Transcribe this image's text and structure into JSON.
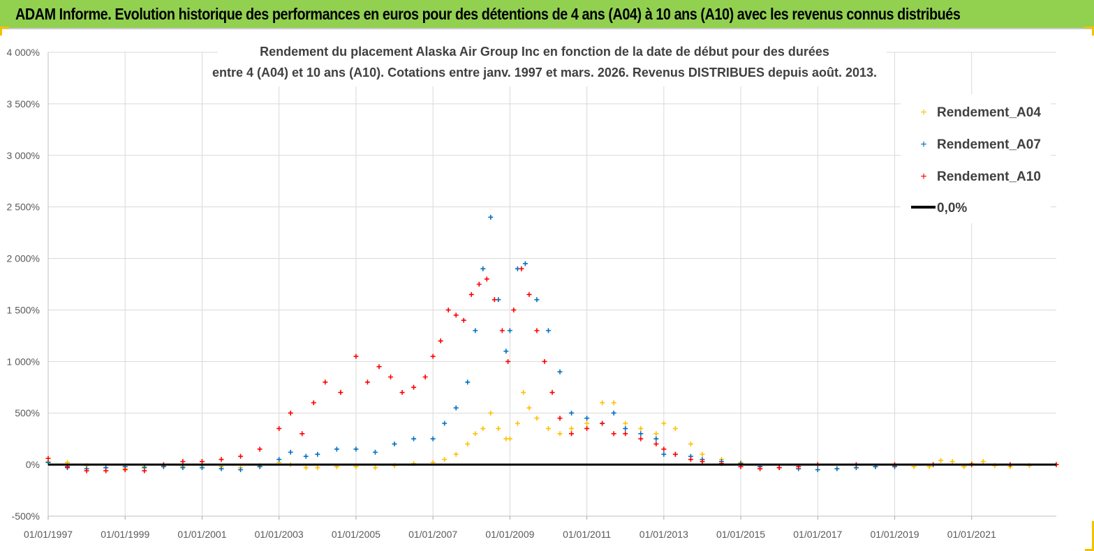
{
  "header": {
    "title": "ADAM Informe. Evolution historique des performances en euros pour des détentions de 4 ans (A04) à 10 ans (A10) avec les revenus connus distribués"
  },
  "colors": {
    "banner": "#92d050",
    "A04": "#ffc000",
    "A07": "#0070c0",
    "A10": "#ff0000",
    "zero": "#000000",
    "grid": "#d9d9d9"
  },
  "chart_data": {
    "type": "scatter",
    "title_lines": [
      "Rendement du placement Alaska Air Group Inc en fonction de la date de début pour des durées",
      "entre 4 (A04) et 10 ans (A10). Cotations entre janv. 1997 et mars. 2026. Revenus DISTRIBUES depuis août. 2013."
    ],
    "x_ticks": [
      "01/01/1997",
      "01/01/1999",
      "01/01/2001",
      "01/01/2003",
      "01/01/2005",
      "01/01/2007",
      "01/01/2009",
      "01/01/2011",
      "01/01/2013",
      "01/01/2015",
      "01/01/2017",
      "01/01/2019",
      "01/01/2021"
    ],
    "x_range": [
      1997.0,
      2023.2
    ],
    "y_ticks": [
      "-500%",
      "0%",
      "500%",
      "1 000%",
      "1 500%",
      "2 000%",
      "2 500%",
      "3 000%",
      "3 500%",
      "4 000%"
    ],
    "y_range": [
      -500,
      4000
    ],
    "grid": "vertical and horizontal",
    "legend_position": "top-right",
    "series": [
      {
        "name": "Rendement_A04",
        "x": [
          1997.0,
          1997.5,
          1998.0,
          1998.5,
          1999.0,
          1999.5,
          2000.0,
          2000.5,
          2001.0,
          2001.5,
          2002.0,
          2002.5,
          2003.0,
          2003.3,
          2003.7,
          2004.0,
          2004.5,
          2005.0,
          2005.5,
          2006.0,
          2006.5,
          2007.0,
          2007.3,
          2007.6,
          2007.9,
          2008.1,
          2008.3,
          2008.5,
          2008.7,
          2008.9,
          2009.0,
          2009.2,
          2009.35,
          2009.5,
          2009.7,
          2010.0,
          2010.3,
          2010.6,
          2011.0,
          2011.4,
          2011.7,
          2012.0,
          2012.4,
          2012.8,
          2013.0,
          2013.3,
          2013.7,
          2014.0,
          2014.5,
          2015.0,
          2015.5,
          2016.0,
          2016.5,
          2017.0,
          2017.5,
          2018.0,
          2018.5,
          2019.0,
          2019.5,
          2019.9,
          2020.2,
          2020.5,
          2020.8,
          2021.0,
          2021.3,
          2021.6,
          2022.0,
          2022.5,
          2023.2
        ],
        "values": [
          30,
          20,
          -10,
          -30,
          -40,
          -20,
          -10,
          -20,
          -10,
          -20,
          -30,
          -10,
          20,
          0,
          -30,
          -30,
          -20,
          -20,
          -30,
          -10,
          10,
          20,
          50,
          100,
          200,
          300,
          350,
          500,
          350,
          250,
          250,
          400,
          700,
          550,
          450,
          350,
          300,
          350,
          400,
          600,
          600,
          400,
          350,
          300,
          400,
          350,
          200,
          100,
          50,
          20,
          -20,
          -30,
          -40,
          -50,
          -40,
          -30,
          -20,
          -10,
          -20,
          -20,
          40,
          30,
          -20,
          10,
          30,
          -10,
          -20,
          -10,
          0
        ]
      },
      {
        "name": "Rendement_A07",
        "x": [
          1997.0,
          1997.5,
          1998.0,
          1998.5,
          1999.0,
          1999.5,
          2000.0,
          2000.5,
          2001.0,
          2001.5,
          2002.0,
          2002.5,
          2003.0,
          2003.3,
          2003.7,
          2004.0,
          2004.5,
          2005.0,
          2005.5,
          2006.0,
          2006.5,
          2007.0,
          2007.3,
          2007.6,
          2007.9,
          2008.1,
          2008.3,
          2008.5,
          2008.7,
          2008.9,
          2009.0,
          2009.2,
          2009.4,
          2009.7,
          2010.0,
          2010.3,
          2010.6,
          2011.0,
          2011.4,
          2011.7,
          2012.0,
          2012.4,
          2012.8,
          2013.0,
          2013.3,
          2013.7,
          2014.0,
          2014.5,
          2015.0,
          2015.5,
          2016.0,
          2016.5,
          2017.0,
          2017.5,
          2018.0,
          2018.5,
          2019.0
        ],
        "values": [
          20,
          -30,
          -40,
          -30,
          -20,
          -30,
          -20,
          -30,
          -30,
          -40,
          -50,
          -20,
          50,
          120,
          80,
          100,
          150,
          150,
          120,
          200,
          250,
          250,
          400,
          550,
          800,
          1300,
          1900,
          2400,
          1600,
          1100,
          1300,
          1900,
          1950,
          1600,
          1300,
          900,
          500,
          450,
          400,
          500,
          350,
          300,
          250,
          100,
          100,
          80,
          50,
          30,
          10,
          -20,
          -30,
          -40,
          -50,
          -40,
          -30,
          -20,
          -20
        ]
      },
      {
        "name": "Rendement_A10",
        "x": [
          1997.0,
          1997.5,
          1998.0,
          1998.5,
          1999.0,
          1999.5,
          2000.0,
          2000.5,
          2001.0,
          2001.5,
          2002.0,
          2002.5,
          2003.0,
          2003.3,
          2003.6,
          2003.9,
          2004.2,
          2004.6,
          2005.0,
          2005.3,
          2005.6,
          2005.9,
          2006.2,
          2006.5,
          2006.8,
          2007.0,
          2007.2,
          2007.4,
          2007.6,
          2007.8,
          2008.0,
          2008.2,
          2008.4,
          2008.6,
          2008.8,
          2008.95,
          2009.1,
          2009.3,
          2009.5,
          2009.7,
          2009.9,
          2010.1,
          2010.3,
          2010.6,
          2011.0,
          2011.4,
          2011.7,
          2012.0,
          2012.4,
          2012.8,
          2013.0,
          2013.3,
          2013.7,
          2014.0,
          2014.5,
          2015.0,
          2015.5,
          2016.0,
          2016.5,
          2017.0,
          2018.0,
          2019.0,
          2020.0,
          2021.0,
          2022.0,
          2023.2
        ],
        "values": [
          60,
          -20,
          -60,
          -60,
          -50,
          -60,
          0,
          30,
          30,
          50,
          80,
          150,
          350,
          500,
          300,
          600,
          800,
          700,
          1050,
          800,
          950,
          850,
          700,
          750,
          850,
          1050,
          1200,
          1500,
          1450,
          1400,
          1650,
          1750,
          1800,
          1600,
          1300,
          1000,
          1500,
          1900,
          1650,
          1300,
          1000,
          700,
          450,
          300,
          350,
          400,
          300,
          300,
          250,
          200,
          150,
          100,
          50,
          30,
          10,
          -20,
          -40,
          -30,
          -20,
          0,
          0,
          0,
          0,
          0,
          0,
          0
        ]
      }
    ]
  },
  "legend": {
    "items": [
      {
        "label": "Rendement_A04",
        "marker": "plus",
        "color": "#ffc000"
      },
      {
        "label": "Rendement_A07",
        "marker": "plus",
        "color": "#0070c0"
      },
      {
        "label": "Rendement_A10",
        "marker": "plus",
        "color": "#ff0000"
      },
      {
        "label": "0,0%",
        "marker": "line",
        "color": "#000000"
      }
    ]
  }
}
